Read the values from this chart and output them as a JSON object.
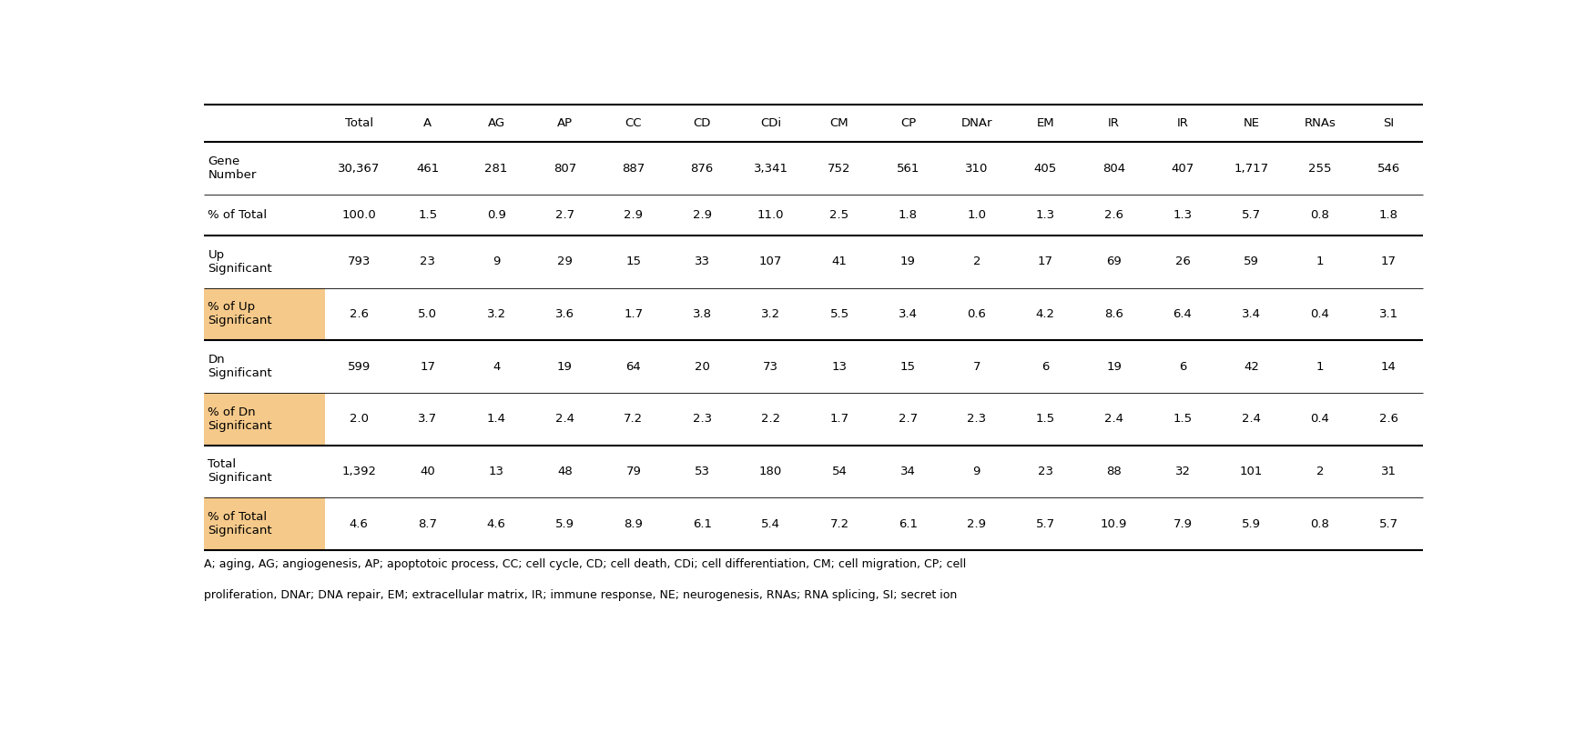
{
  "col_headers": [
    "",
    "Total",
    "A",
    "AG",
    "AP",
    "CC",
    "CD",
    "CDi",
    "CM",
    "CP",
    "DNAr",
    "EM",
    "IR",
    "IR",
    "NE",
    "RNAs",
    "SI"
  ],
  "rows": [
    {
      "label": "Gene\nNumber",
      "values": [
        "30,367",
        "461",
        "281",
        "807",
        "887",
        "876",
        "3,341",
        "752",
        "561",
        "310",
        "405",
        "804",
        "407",
        "1,717",
        "255",
        "546"
      ],
      "highlight": false
    },
    {
      "label": "% of Total",
      "values": [
        "100.0",
        "1.5",
        "0.9",
        "2.7",
        "2.9",
        "2.9",
        "11.0",
        "2.5",
        "1.8",
        "1.0",
        "1.3",
        "2.6",
        "1.3",
        "5.7",
        "0.8",
        "1.8"
      ],
      "highlight": false
    },
    {
      "label": "Up\nSignificant",
      "values": [
        "793",
        "23",
        "9",
        "29",
        "15",
        "33",
        "107",
        "41",
        "19",
        "2",
        "17",
        "69",
        "26",
        "59",
        "1",
        "17"
      ],
      "highlight": false
    },
    {
      "label": "% of Up\nSignificant",
      "values": [
        "2.6",
        "5.0",
        "3.2",
        "3.6",
        "1.7",
        "3.8",
        "3.2",
        "5.5",
        "3.4",
        "0.6",
        "4.2",
        "8.6",
        "6.4",
        "3.4",
        "0.4",
        "3.1"
      ],
      "highlight": true
    },
    {
      "label": "Dn\nSignificant",
      "values": [
        "599",
        "17",
        "4",
        "19",
        "64",
        "20",
        "73",
        "13",
        "15",
        "7",
        "6",
        "19",
        "6",
        "42",
        "1",
        "14"
      ],
      "highlight": false
    },
    {
      "label": "% of Dn\nSignificant",
      "values": [
        "2.0",
        "3.7",
        "1.4",
        "2.4",
        "7.2",
        "2.3",
        "2.2",
        "1.7",
        "2.7",
        "2.3",
        "1.5",
        "2.4",
        "1.5",
        "2.4",
        "0.4",
        "2.6"
      ],
      "highlight": true
    },
    {
      "label": "Total\nSignificant",
      "values": [
        "1,392",
        "40",
        "13",
        "48",
        "79",
        "53",
        "180",
        "54",
        "34",
        "9",
        "23",
        "88",
        "32",
        "101",
        "2",
        "31"
      ],
      "highlight": false
    },
    {
      "label": "% of Total\nSignificant",
      "values": [
        "4.6",
        "8.7",
        "4.6",
        "5.9",
        "8.9",
        "6.1",
        "5.4",
        "7.2",
        "6.1",
        "2.9",
        "5.7",
        "10.9",
        "7.9",
        "5.9",
        "0.8",
        "5.7"
      ],
      "highlight": true
    }
  ],
  "footer_line1": "A; aging, AG; angiogenesis, AP; apoptotoic process, CC; cell cycle, CD; cell death, CDi; cell differentiation, CM; cell migration, CP; cell",
  "footer_line2": "proliferation, DNAr; DNA repair, EM; extracellular matrix, IR; immune response, NE; neurogenesis, RNAs; RNA splicing, SI; secret ion",
  "highlight_color": "#F5C98A",
  "thick_line_rows": [
    0,
    1,
    2,
    4,
    6
  ],
  "background_color": "#ffffff",
  "text_color": "#000000",
  "font_size": 9.5
}
